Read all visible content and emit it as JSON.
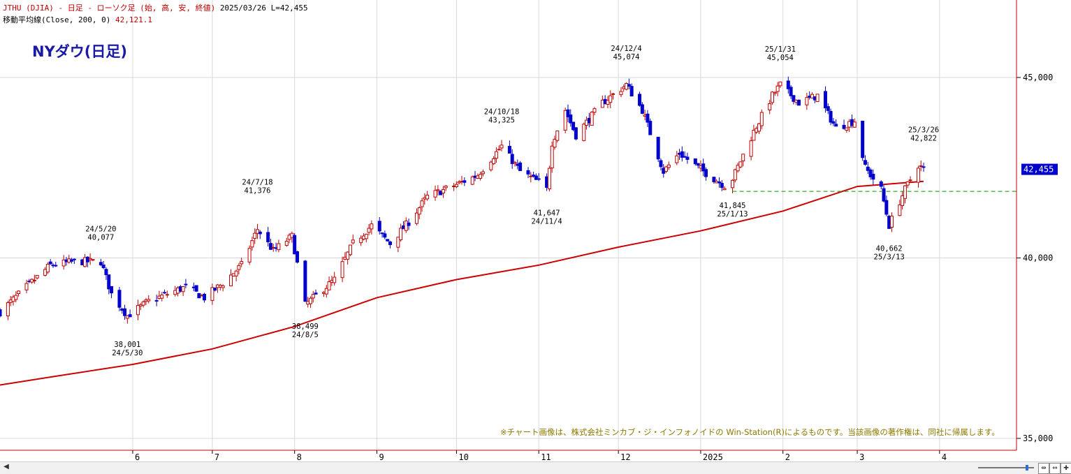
{
  "header": {
    "line1_title": "JTHU (DJIA) - 日足 - ローソク足 (始, 高, 安, 終値)",
    "line1_date": "2025/03/26",
    "line1_last": "L=42,455",
    "line2_label": "移動平均線(Close, 200, 0)",
    "line2_value": "42,121.1"
  },
  "title": "NYダウ(日足)",
  "credit": "※チャート画像は、株式会社ミンカブ・ジ・インフォノイドの Win-Station(R)によるものです。当該画像の著作権は、同社に帰属します。",
  "icons": {
    "scroll_left": "chevron-left-icon",
    "zoom_in": "zoom-in-icon",
    "zoom_out": "zoom-out-icon",
    "add": "crosshair-plus-icon"
  },
  "colors": {
    "up": "#c00000",
    "down": "#0000cc",
    "ma": "#cc0000",
    "support_line": "#009900",
    "price_box": "#0000cc",
    "grid": "#d8d8d8",
    "annotation": "#000000"
  },
  "chart_data": {
    "type": "candlestick",
    "ylim": [
      34800,
      47000
    ],
    "y_ticks": [
      {
        "value": 35000,
        "label": "35,000"
      },
      {
        "value": 40000,
        "label": "40,000"
      },
      {
        "value": 45000,
        "label": "45,000"
      }
    ],
    "x_ticks": [
      {
        "label": "6",
        "date": "2024-06-01"
      },
      {
        "label": "7",
        "date": "2024-07-01"
      },
      {
        "label": "8",
        "date": "2024-08-01"
      },
      {
        "label": "9",
        "date": "2024-09-01"
      },
      {
        "label": "10",
        "date": "2024-10-01"
      },
      {
        "label": "11",
        "date": "2024-11-01"
      },
      {
        "label": "12",
        "date": "2024-12-01"
      },
      {
        "label": "2025",
        "date": "2025-01-01"
      },
      {
        "label": "2",
        "date": "2025-02-01"
      },
      {
        "label": "3",
        "date": "2025-03-01"
      },
      {
        "label": "4",
        "date": "2025-04-01"
      }
    ],
    "x_range": [
      "2024-04-12",
      "2025-04-30"
    ],
    "price_path": [
      [
        "2024-04-12",
        38500
      ],
      [
        "2024-04-22",
        39200
      ],
      [
        "2024-05-01",
        39800
      ],
      [
        "2024-05-10",
        39900
      ],
      [
        "2024-05-20",
        39900
      ],
      [
        "2024-05-24",
        39000
      ],
      [
        "2024-05-30",
        38400
      ],
      [
        "2024-06-07",
        38800
      ],
      [
        "2024-06-21",
        39200
      ],
      [
        "2024-06-28",
        38900
      ],
      [
        "2024-07-05",
        39300
      ],
      [
        "2024-07-12",
        39800
      ],
      [
        "2024-07-18",
        40800
      ],
      [
        "2024-07-24",
        40200
      ],
      [
        "2024-07-31",
        40600
      ],
      [
        "2024-08-05",
        38700
      ],
      [
        "2024-08-16",
        39400
      ],
      [
        "2024-08-23",
        40400
      ],
      [
        "2024-08-30",
        40900
      ],
      [
        "2024-09-06",
        40400
      ],
      [
        "2024-09-13",
        41000
      ],
      [
        "2024-09-20",
        41700
      ],
      [
        "2024-09-30",
        42000
      ],
      [
        "2024-10-09",
        42300
      ],
      [
        "2024-10-18",
        43100
      ],
      [
        "2024-10-25",
        42400
      ],
      [
        "2024-11-01",
        42100
      ],
      [
        "2024-11-04",
        41900
      ],
      [
        "2024-11-06",
        43200
      ],
      [
        "2024-11-11",
        44100
      ],
      [
        "2024-11-15",
        43400
      ],
      [
        "2024-11-25",
        44300
      ],
      [
        "2024-12-04",
        44800
      ],
      [
        "2024-12-10",
        44100
      ],
      [
        "2024-12-18",
        42400
      ],
      [
        "2024-12-24",
        42900
      ],
      [
        "2025-01-02",
        42400
      ],
      [
        "2025-01-10",
        42000
      ],
      [
        "2025-01-13",
        42200
      ],
      [
        "2025-01-21",
        43500
      ],
      [
        "2025-01-28",
        44500
      ],
      [
        "2025-01-31",
        44800
      ],
      [
        "2025-02-07",
        44300
      ],
      [
        "2025-02-14",
        44500
      ],
      [
        "2025-02-21",
        43600
      ],
      [
        "2025-02-28",
        43800
      ],
      [
        "2025-03-04",
        42500
      ],
      [
        "2025-03-10",
        41900
      ],
      [
        "2025-03-13",
        40900
      ],
      [
        "2025-03-19",
        41900
      ],
      [
        "2025-03-24",
        42580
      ],
      [
        "2025-03-26",
        42455
      ]
    ],
    "moving_average_200": [
      [
        "2024-04-12",
        36480
      ],
      [
        "2024-05-01",
        36700
      ],
      [
        "2024-06-01",
        37050
      ],
      [
        "2024-07-01",
        37480
      ],
      [
        "2024-08-01",
        38100
      ],
      [
        "2024-09-01",
        38900
      ],
      [
        "2024-10-01",
        39400
      ],
      [
        "2024-11-01",
        39800
      ],
      [
        "2024-12-01",
        40300
      ],
      [
        "2025-01-01",
        40750
      ],
      [
        "2025-02-01",
        41300
      ],
      [
        "2025-03-01",
        41980
      ],
      [
        "2025-03-26",
        42121
      ]
    ],
    "support_line": {
      "value": 41845,
      "from": "2025-01-13",
      "to": "2025-04-30"
    },
    "current_price": {
      "value": 42455,
      "label": "42,455"
    },
    "annotations": [
      {
        "date": "2024-05-20",
        "value": 40077,
        "text": [
          "24/5/20",
          "40,077"
        ],
        "pos": "above"
      },
      {
        "date": "2024-05-30",
        "value": 38001,
        "text": [
          "38,001",
          "24/5/30"
        ],
        "pos": "below"
      },
      {
        "date": "2024-07-18",
        "value": 41376,
        "text": [
          "24/7/18",
          "41,376"
        ],
        "pos": "above"
      },
      {
        "date": "2024-08-05",
        "value": 38499,
        "text": [
          "38,499",
          "24/8/5"
        ],
        "pos": "below"
      },
      {
        "date": "2024-10-18",
        "value": 43325,
        "text": [
          "24/10/18",
          "43,325"
        ],
        "pos": "above"
      },
      {
        "date": "2024-11-04",
        "value": 41647,
        "text": [
          "41,647",
          "24/11/4"
        ],
        "pos": "below"
      },
      {
        "date": "2024-12-04",
        "value": 45074,
        "text": [
          "24/12/4",
          "45,074"
        ],
        "pos": "above"
      },
      {
        "date": "2025-01-13",
        "value": 41845,
        "text": [
          "41,845",
          "25/1/13"
        ],
        "pos": "below"
      },
      {
        "date": "2025-01-31",
        "value": 45054,
        "text": [
          "25/1/31",
          "45,054"
        ],
        "pos": "above"
      },
      {
        "date": "2025-03-13",
        "value": 40662,
        "text": [
          "40,662",
          "25/3/13"
        ],
        "pos": "below"
      },
      {
        "date": "2025-03-26",
        "value": 42822,
        "text": [
          "25/3/26",
          "42,822"
        ],
        "pos": "above"
      }
    ]
  }
}
